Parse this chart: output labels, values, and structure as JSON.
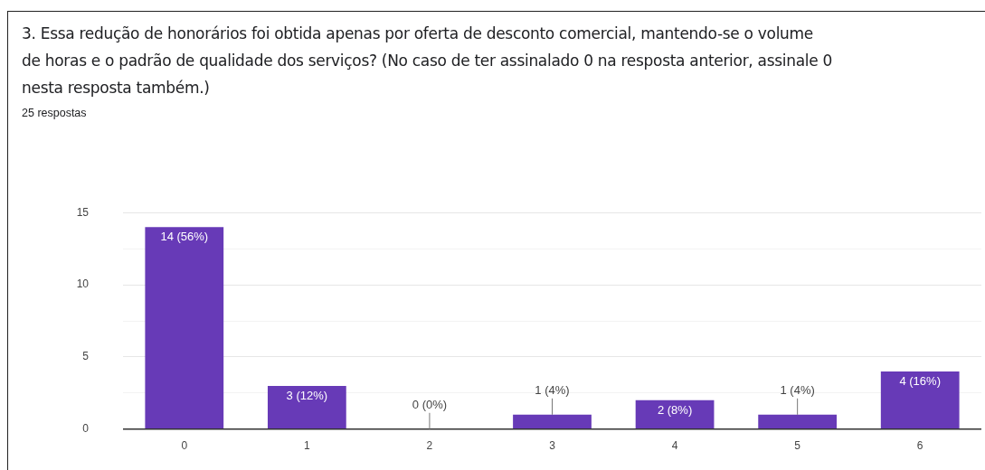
{
  "chart_data": {
    "type": "bar",
    "title": "3. Essa redução de honorários foi obtida apenas por oferta de desconto comercial, mantendo-se o volume de horas e o padrão de qualidade dos serviços? (No caso de ter assinalado 0 na resposta anterior, assinale 0 nesta resposta também.)",
    "subtitle": "25 respostas",
    "categories": [
      "0",
      "1",
      "2",
      "3",
      "4",
      "5",
      "6"
    ],
    "values": [
      14,
      3,
      0,
      1,
      2,
      1,
      4
    ],
    "value_labels": [
      "14 (56%)",
      "3 (12%)",
      "0 (0%)",
      "1 (4%)",
      "2 (8%)",
      "1 (4%)",
      "4 (16%)"
    ],
    "color": "#673ab7",
    "ylim": [
      0,
      15
    ],
    "yticks": [
      0,
      {
        "value": 2.5,
        "label": null
      },
      5,
      {
        "value": 7.5,
        "label": null
      },
      10,
      {
        "value": 12.5,
        "label": null
      },
      15
    ],
    "grid": "y",
    "legend": false
  }
}
